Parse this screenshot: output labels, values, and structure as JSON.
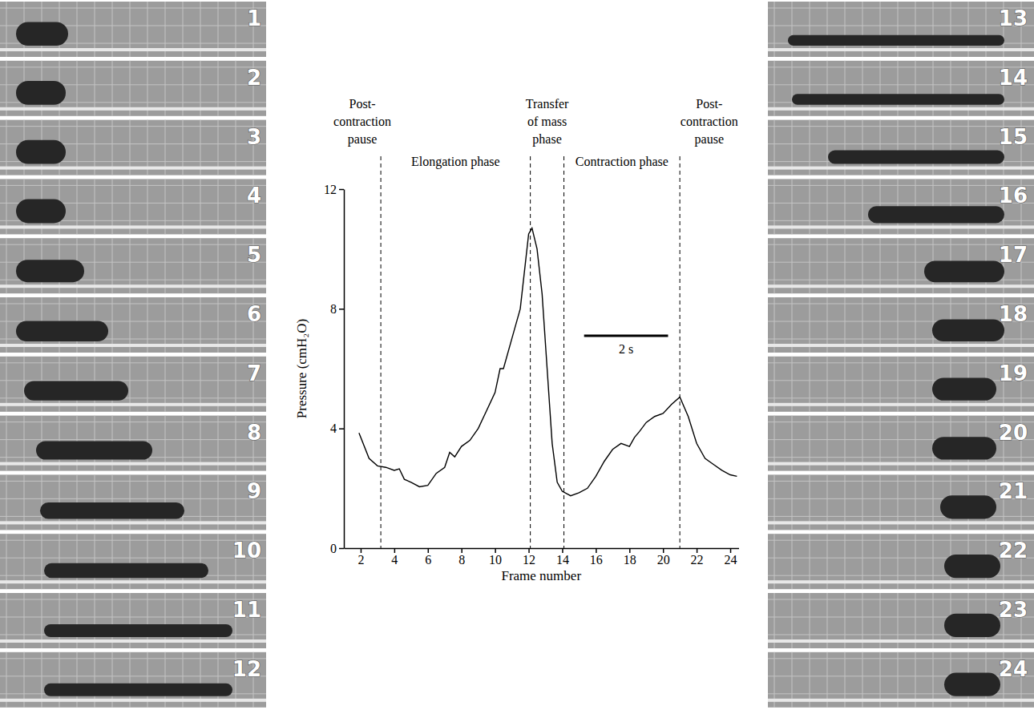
{
  "chart_data": {
    "type": "line",
    "x_label": "Frame number",
    "y_label": "Pressure (cmH₂O)",
    "xlim": [
      1,
      24.5
    ],
    "xticks": [
      2,
      4,
      6,
      8,
      10,
      12,
      14,
      16,
      18,
      20,
      22,
      24
    ],
    "ylim": [
      0,
      12
    ],
    "yticks": [
      0,
      4,
      8,
      12
    ],
    "color": "#000000",
    "x": [
      1.9,
      2.5,
      3.0,
      3.5,
      4.0,
      4.3,
      4.6,
      5.0,
      5.5,
      6.0,
      6.5,
      7.0,
      7.3,
      7.6,
      8.0,
      8.5,
      9.0,
      9.5,
      10.0,
      10.3,
      10.5,
      11.0,
      11.5,
      11.8,
      12.0,
      12.2,
      12.5,
      12.8,
      13.1,
      13.4,
      13.7,
      14.0,
      14.5,
      15.0,
      15.5,
      16.0,
      16.5,
      17.0,
      17.5,
      18.0,
      18.3,
      18.6,
      19.0,
      19.5,
      20.0,
      20.5,
      21.0,
      21.5,
      22.0,
      22.5,
      23.0,
      23.5,
      24.0,
      24.4
    ],
    "values": [
      3.85,
      3.0,
      2.75,
      2.7,
      2.6,
      2.65,
      2.3,
      2.2,
      2.05,
      2.1,
      2.5,
      2.7,
      3.2,
      3.05,
      3.4,
      3.6,
      4.0,
      4.6,
      5.2,
      6.0,
      6.0,
      7.0,
      8.0,
      9.5,
      10.5,
      10.7,
      10.0,
      8.5,
      6.0,
      3.5,
      2.2,
      1.9,
      1.75,
      1.85,
      2.0,
      2.4,
      2.9,
      3.3,
      3.5,
      3.4,
      3.7,
      3.9,
      4.2,
      4.4,
      4.5,
      4.8,
      5.05,
      4.4,
      3.5,
      3.0,
      2.8,
      2.6,
      2.45,
      2.4
    ],
    "phase_lines": [
      3.2,
      12.1,
      14.1,
      21.0
    ],
    "phases": [
      "Post-\ncontraction\npause",
      "Elongation phase",
      "Transfer\nof mass\nphase",
      "Contraction phase",
      "Post-\ncontraction\npause"
    ],
    "scale_bar": {
      "label": "2 s",
      "x": [
        15.3,
        20.3
      ],
      "y": 7.1
    }
  },
  "frames": [
    1,
    2,
    3,
    4,
    5,
    6,
    7,
    8,
    9,
    10,
    11,
    12,
    13,
    14,
    15,
    16,
    17,
    18,
    19,
    20,
    21,
    22,
    23,
    24
  ]
}
